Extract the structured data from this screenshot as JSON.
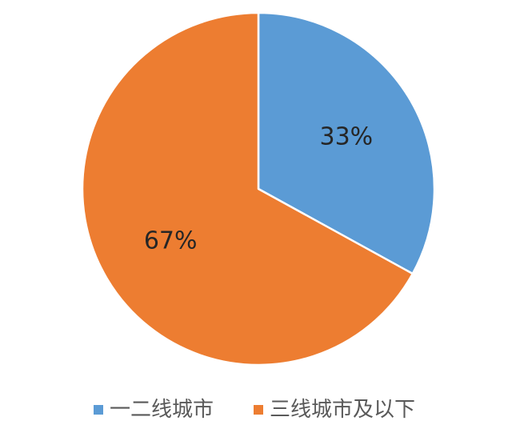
{
  "chart_data": {
    "type": "pie",
    "title": "",
    "categories": [
      "一二线城市",
      "三线城市及以下"
    ],
    "values": [
      33,
      67
    ],
    "labels": [
      "33%",
      "67%"
    ],
    "colors": [
      "#5B9BD5",
      "#ED7D31"
    ],
    "start_angle_deg": 0,
    "direction": "clockwise",
    "legend_position": "bottom"
  }
}
